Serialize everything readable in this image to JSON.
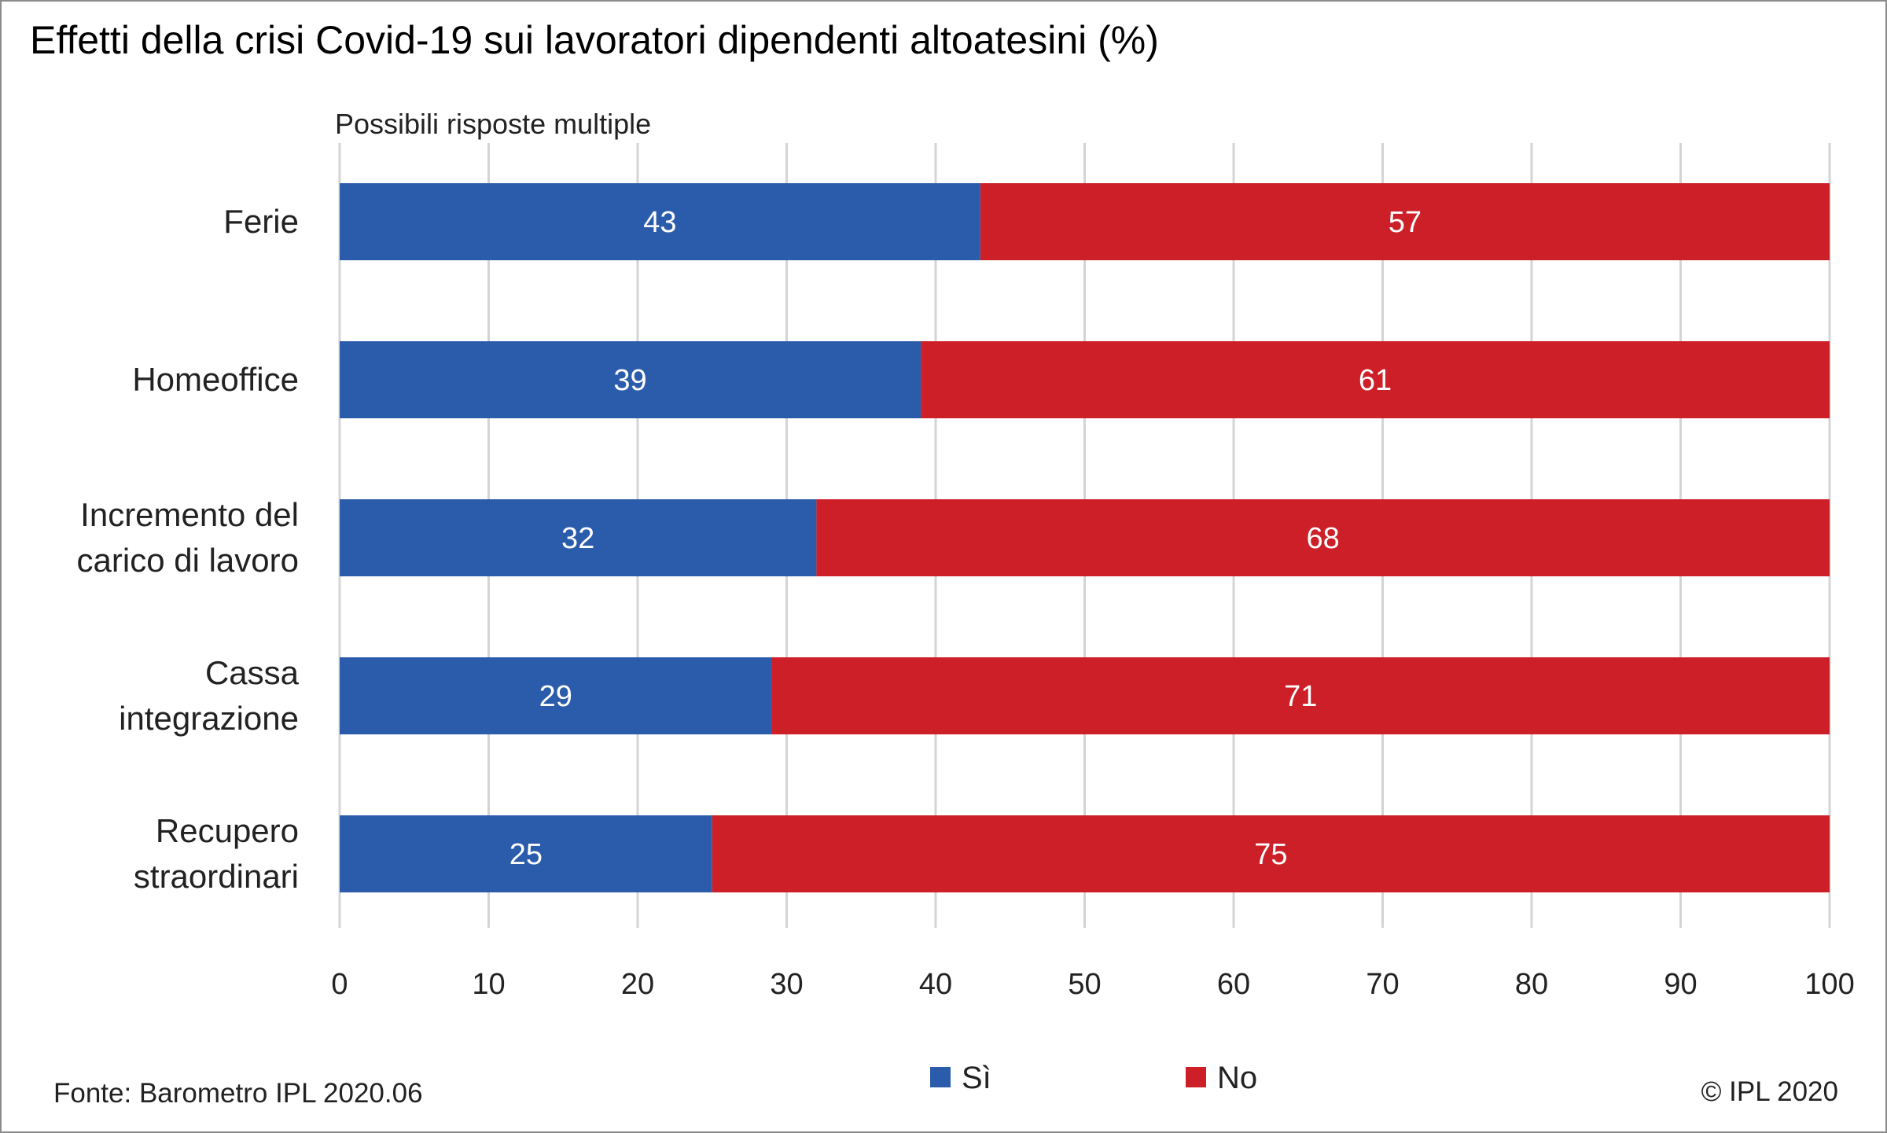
{
  "chart_data": {
    "type": "bar",
    "orientation": "horizontal",
    "stacked": true,
    "title": "Effetti della crisi Covid-19 sui lavoratori dipendenti altoatesini (%)",
    "subtitle": "Possibili risposte multiple",
    "categories": [
      [
        "Ferie"
      ],
      [
        "Homeoffice"
      ],
      [
        "Incremento del",
        "carico di lavoro"
      ],
      [
        "Cassa",
        "integrazione"
      ],
      [
        "Recupero",
        "straordinari"
      ]
    ],
    "series": [
      {
        "name": "Sì",
        "color": "#2b5cab",
        "values": [
          43,
          39,
          32,
          29,
          25
        ]
      },
      {
        "name": "No",
        "color": "#cc1f27",
        "values": [
          57,
          61,
          68,
          71,
          75
        ]
      }
    ],
    "xlim": [
      0,
      100
    ],
    "xticks": [
      0,
      10,
      20,
      30,
      40,
      50,
      60,
      70,
      80,
      90,
      100
    ],
    "grid": true,
    "legend_position": "bottom",
    "source": "Fonte: Barometro IPL 2020.06",
    "copyright": "© IPL 2020"
  }
}
